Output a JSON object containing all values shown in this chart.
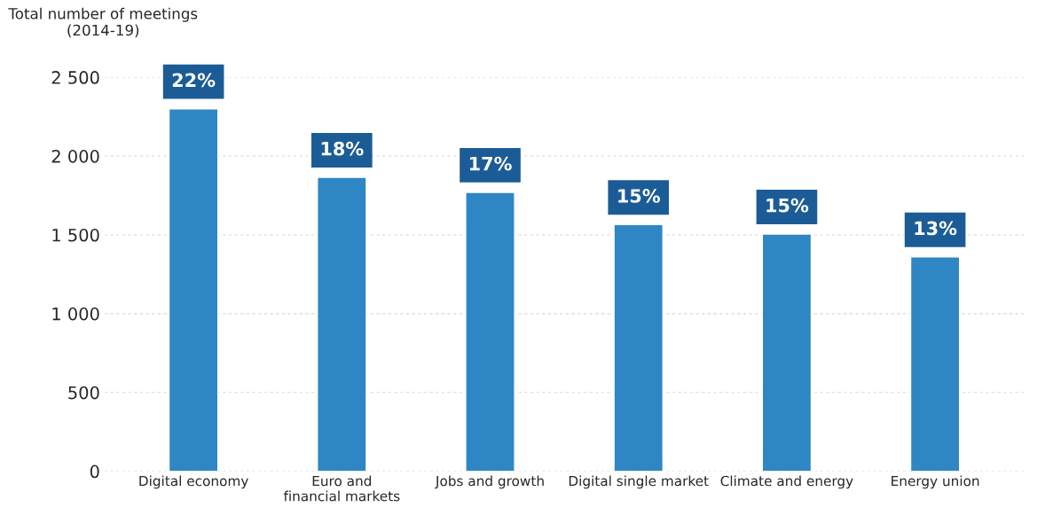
{
  "chart_data": {
    "type": "bar",
    "ylabel": "Total number of meetings\n(2014-19)",
    "categories": [
      "Digital economy",
      "Euro and\nfinancial markets",
      "Jobs and growth",
      "Digital single market",
      "Climate and energy",
      "Energy union"
    ],
    "values": [
      2300,
      1865,
      1770,
      1565,
      1505,
      1360
    ],
    "color": "#2f86c4",
    "ylim": [
      0,
      2500
    ],
    "yticks": [
      0,
      500,
      {
        "value": 1000,
        "label": "1 000"
      },
      {
        "value": 1500,
        "label": "1 500"
      },
      {
        "value": 2000,
        "label": "2 000"
      },
      {
        "value": 2500,
        "label": "2 500"
      }
    ],
    "grid": "y",
    "annotations": [
      {
        "text": "22%",
        "x": "Digital economy",
        "y": 2300
      },
      {
        "text": "18%",
        "x": "Euro and\nfinancial markets",
        "y": 1865
      },
      {
        "text": "17%",
        "x": "Jobs and growth",
        "y": 1770
      },
      {
        "text": "15%",
        "x": "Digital single market",
        "y": 1565
      },
      {
        "text": "15%",
        "x": "Climate and energy",
        "y": 1505
      },
      {
        "text": "13%",
        "x": "Energy union",
        "y": 1360
      }
    ]
  }
}
